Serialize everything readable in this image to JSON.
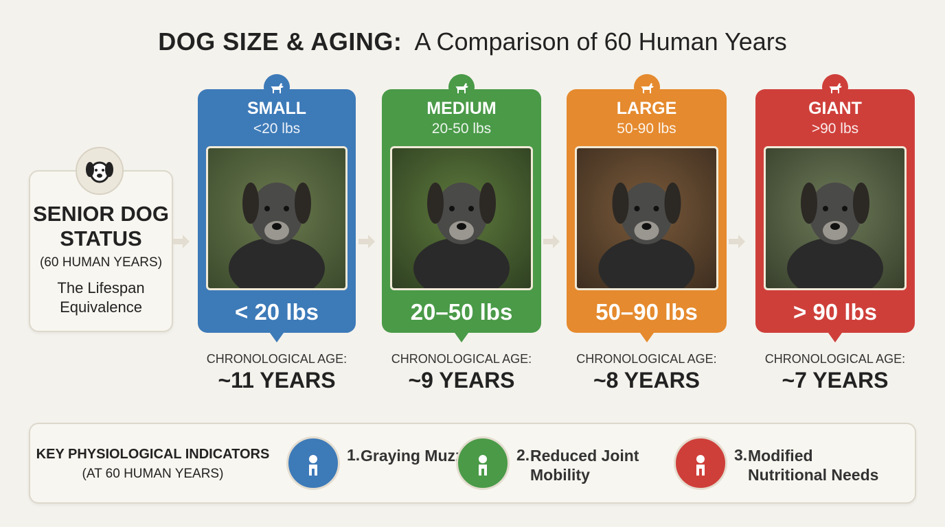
{
  "header": {
    "title_bold": "DOG SIZE & AGING:",
    "title_rest": "A Comparison of 60 Human Years"
  },
  "intro": {
    "title": "SENIOR DOG STATUS",
    "subtitle": "(60 HUMAN YEARS)",
    "caption": "The Lifespan Equivalence"
  },
  "cards": [
    {
      "name": "SMALL",
      "range": "<20 lbs",
      "weight": "< 20 lbs",
      "age_label": "CHRONOLOGICAL AGE:",
      "age": "~11 YEARS",
      "color": "#3d7ab8"
    },
    {
      "name": "MEDIUM",
      "range": "20-50 lbs",
      "weight": "20–50 lbs",
      "age_label": "CHRONOLOGICAL AGE:",
      "age": "~9 YEARS",
      "color": "#4a9a48"
    },
    {
      "name": "LARGE",
      "range": "50-90 lbs",
      "weight": "50–90 lbs",
      "age_label": "CHRONOLOGICAL AGE:",
      "age": "~8 YEARS",
      "color": "#e58a2e"
    },
    {
      "name": "GIANT",
      "range": ">90 lbs",
      "weight": "> 90 lbs",
      "age_label": "CHRONOLOGICAL AGE:",
      "age": "~7 YEARS",
      "color": "#cf3f3a"
    }
  ],
  "indicators": {
    "title": "KEY PHYSIOLOGICAL INDICATORS",
    "subtitle": "(AT 60 HUMAN YEARS)",
    "items": [
      {
        "number": "1.",
        "text": "Graying Muzzle",
        "color": "#3d7ab8"
      },
      {
        "number": "2.",
        "text": "Reduced Joint Mobility",
        "color": "#4a9a48"
      },
      {
        "number": "3.",
        "text": "Modified Nutritional Needs",
        "color": "#cf3f3a"
      }
    ]
  }
}
